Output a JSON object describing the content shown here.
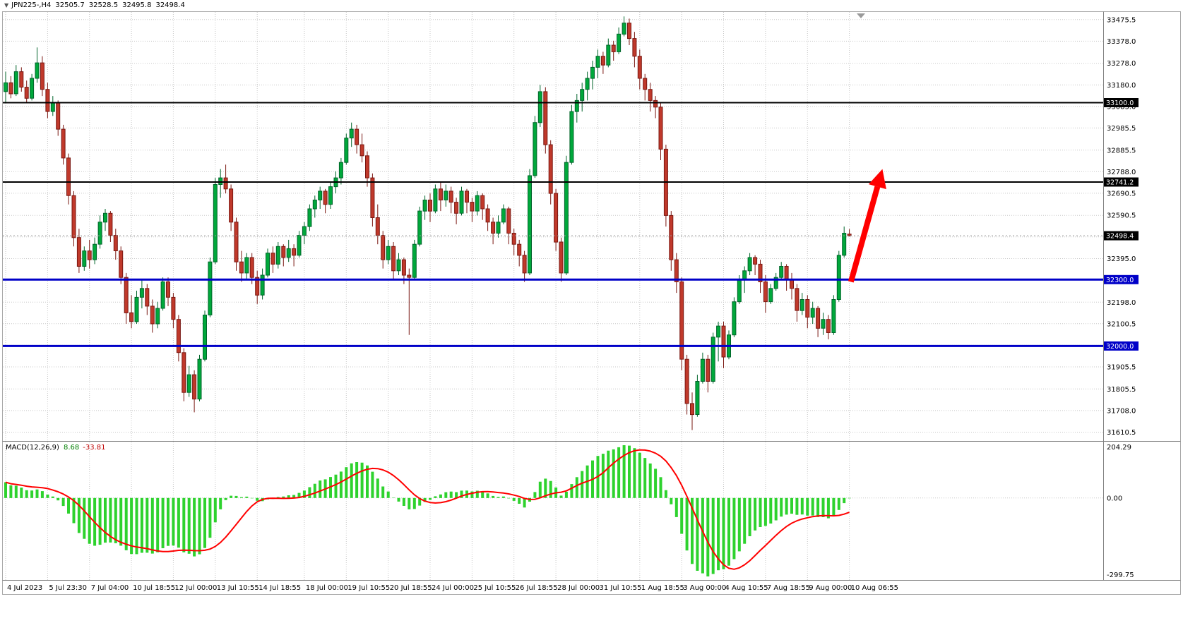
{
  "header": {
    "dropdown_icon": "▼",
    "symbol_period": "JPN225-,H4",
    "open": "32505.7",
    "high": "32528.5",
    "low": "32495.8",
    "close": "32498.4"
  },
  "colors": {
    "background": "#FFFFFF",
    "grid": "#C8C8C8",
    "bull_body": "#00A83B",
    "bull_border": "#00642A",
    "bear_body": "#C0392B",
    "bear_border": "#7A1812",
    "black_line": "#000000",
    "blue_line": "#0000C8",
    "bid_label_bg": "#000000",
    "macd_histogram": "#2ED22E",
    "macd_signal": "#FF0000",
    "arrow": "#FF0000",
    "scale_text": "#000000",
    "separator": "#808080"
  },
  "chart_data": {
    "type": "candlestick",
    "symbol": "JPN225-",
    "timeframe": "H4",
    "title": "JPN225-,H4",
    "price_axis": {
      "ticks": [
        33475.5,
        33378.0,
        33278.0,
        33180.0,
        33083.0,
        32985.5,
        32885.5,
        32788.0,
        32690.5,
        32590.5,
        32493.0,
        32395.0,
        32298.0,
        32198.0,
        32100.5,
        32003.0,
        31905.5,
        31805.5,
        31708.0,
        31610.5
      ]
    },
    "x_axis": {
      "labels": [
        "4 Jul 2023",
        "5 Jul 23:30",
        "7 Jul 04:00",
        "10 Jul 18:55",
        "12 Jul 00:00",
        "13 Jul 10:55",
        "14 Jul 18:55",
        "18 Jul 00:00",
        "19 Jul 10:55",
        "20 Jul 18:55",
        "24 Jul 00:00",
        "25 Jul 10:55",
        "26 Jul 18:55",
        "28 Jul 00:00",
        "31 Jul 10:55",
        "1 Aug 18:55",
        "3 Aug 00:00",
        "4 Aug 10:55",
        "7 Aug 18:55",
        "9 Aug 00:00",
        "10 Aug 06:55"
      ],
      "candle_indices": [
        0,
        8,
        16,
        24,
        32,
        40,
        48,
        57,
        65,
        73,
        81,
        89,
        97,
        105,
        113,
        121,
        129,
        137,
        145,
        153,
        161
      ]
    },
    "candles": [
      [
        33150,
        33240,
        33100,
        33190
      ],
      [
        33190,
        33220,
        33120,
        33140
      ],
      [
        33140,
        33270,
        33130,
        33240
      ],
      [
        33240,
        33260,
        33150,
        33170
      ],
      [
        33170,
        33200,
        33100,
        33120
      ],
      [
        33120,
        33230,
        33110,
        33210
      ],
      [
        33210,
        33350,
        33190,
        33280
      ],
      [
        33280,
        33310,
        33130,
        33160
      ],
      [
        33160,
        33190,
        33030,
        33060
      ],
      [
        33060,
        33130,
        33040,
        33100
      ],
      [
        33100,
        33110,
        32950,
        32980
      ],
      [
        32980,
        33000,
        32820,
        32850
      ],
      [
        32850,
        32870,
        32640,
        32680
      ],
      [
        32680,
        32700,
        32450,
        32490
      ],
      [
        32490,
        32530,
        32330,
        32360
      ],
      [
        32360,
        32450,
        32340,
        32430
      ],
      [
        32430,
        32480,
        32350,
        32390
      ],
      [
        32390,
        32490,
        32370,
        32460
      ],
      [
        32460,
        32590,
        32440,
        32560
      ],
      [
        32560,
        32620,
        32520,
        32600
      ],
      [
        32600,
        32610,
        32470,
        32500
      ],
      [
        32500,
        32530,
        32390,
        32430
      ],
      [
        32430,
        32450,
        32280,
        32310
      ],
      [
        32310,
        32330,
        32100,
        32150
      ],
      [
        32150,
        32230,
        32080,
        32110
      ],
      [
        32110,
        32250,
        32100,
        32220
      ],
      [
        32220,
        32300,
        32170,
        32260
      ],
      [
        32260,
        32280,
        32140,
        32180
      ],
      [
        32180,
        32210,
        32060,
        32100
      ],
      [
        32100,
        32200,
        32080,
        32170
      ],
      [
        32170,
        32310,
        32160,
        32290
      ],
      [
        32290,
        32310,
        32180,
        32220
      ],
      [
        32220,
        32240,
        32080,
        32120
      ],
      [
        32120,
        32140,
        31930,
        31970
      ],
      [
        31970,
        31990,
        31750,
        31790
      ],
      [
        31790,
        31910,
        31770,
        31870
      ],
      [
        31870,
        31890,
        31700,
        31760
      ],
      [
        31760,
        31960,
        31750,
        31940
      ],
      [
        31940,
        32160,
        31930,
        32140
      ],
      [
        32140,
        32400,
        32130,
        32380
      ],
      [
        32380,
        32760,
        32370,
        32730
      ],
      [
        32730,
        32800,
        32670,
        32760
      ],
      [
        32760,
        32820,
        32690,
        32710
      ],
      [
        32710,
        32730,
        32520,
        32560
      ],
      [
        32560,
        32580,
        32340,
        32380
      ],
      [
        32380,
        32430,
        32290,
        32330
      ],
      [
        32330,
        32420,
        32300,
        32400
      ],
      [
        32400,
        32420,
        32280,
        32310
      ],
      [
        32310,
        32340,
        32190,
        32230
      ],
      [
        32230,
        32350,
        32210,
        32320
      ],
      [
        32320,
        32440,
        32310,
        32420
      ],
      [
        32420,
        32450,
        32330,
        32370
      ],
      [
        32370,
        32470,
        32350,
        32450
      ],
      [
        32450,
        32460,
        32360,
        32400
      ],
      [
        32400,
        32480,
        32380,
        32440
      ],
      [
        32440,
        32460,
        32360,
        32410
      ],
      [
        32410,
        32520,
        32400,
        32500
      ],
      [
        32500,
        32560,
        32460,
        32540
      ],
      [
        32540,
        32640,
        32520,
        32620
      ],
      [
        32620,
        32680,
        32580,
        32660
      ],
      [
        32660,
        32720,
        32620,
        32700
      ],
      [
        32700,
        32710,
        32600,
        32640
      ],
      [
        32640,
        32740,
        32620,
        32720
      ],
      [
        32720,
        32790,
        32690,
        32760
      ],
      [
        32760,
        32850,
        32730,
        32830
      ],
      [
        32830,
        32960,
        32820,
        32940
      ],
      [
        32940,
        33010,
        32900,
        32980
      ],
      [
        32980,
        33000,
        32870,
        32910
      ],
      [
        32910,
        32960,
        32830,
        32860
      ],
      [
        32860,
        32880,
        32720,
        32760
      ],
      [
        32760,
        32780,
        32540,
        32580
      ],
      [
        32580,
        32640,
        32460,
        32500
      ],
      [
        32500,
        32520,
        32350,
        32390
      ],
      [
        32390,
        32480,
        32370,
        32450
      ],
      [
        32450,
        32470,
        32300,
        32340
      ],
      [
        32340,
        32420,
        32320,
        32390
      ],
      [
        32390,
        32400,
        32280,
        32320
      ],
      [
        32320,
        32350,
        32050,
        32310
      ],
      [
        32310,
        32480,
        32300,
        32460
      ],
      [
        32460,
        32630,
        32450,
        32610
      ],
      [
        32610,
        32680,
        32570,
        32660
      ],
      [
        32660,
        32690,
        32560,
        32610
      ],
      [
        32610,
        32730,
        32600,
        32710
      ],
      [
        32710,
        32740,
        32610,
        32660
      ],
      [
        32660,
        32730,
        32630,
        32700
      ],
      [
        32700,
        32720,
        32600,
        32650
      ],
      [
        32650,
        32670,
        32550,
        32600
      ],
      [
        32600,
        32720,
        32590,
        32700
      ],
      [
        32700,
        32710,
        32600,
        32650
      ],
      [
        32650,
        32670,
        32560,
        32610
      ],
      [
        32610,
        32700,
        32590,
        32680
      ],
      [
        32680,
        32690,
        32570,
        32620
      ],
      [
        32620,
        32640,
        32520,
        32560
      ],
      [
        32560,
        32580,
        32460,
        32510
      ],
      [
        32510,
        32590,
        32490,
        32560
      ],
      [
        32560,
        32640,
        32550,
        32620
      ],
      [
        32620,
        32630,
        32460,
        32510
      ],
      [
        32510,
        32530,
        32410,
        32460
      ],
      [
        32460,
        32480,
        32360,
        32410
      ],
      [
        32410,
        32430,
        32290,
        32330
      ],
      [
        32330,
        32800,
        32320,
        32770
      ],
      [
        32770,
        33040,
        32760,
        33010
      ],
      [
        33010,
        33180,
        32990,
        33150
      ],
      [
        33150,
        33170,
        32870,
        32910
      ],
      [
        32910,
        32930,
        32640,
        32690
      ],
      [
        32690,
        32710,
        32430,
        32470
      ],
      [
        32470,
        32490,
        32290,
        32330
      ],
      [
        32330,
        32860,
        32320,
        32830
      ],
      [
        32830,
        33090,
        32820,
        33060
      ],
      [
        33060,
        33140,
        33010,
        33110
      ],
      [
        33110,
        33190,
        33060,
        33160
      ],
      [
        33160,
        33240,
        33110,
        33210
      ],
      [
        33210,
        33290,
        33160,
        33260
      ],
      [
        33260,
        33340,
        33210,
        33310
      ],
      [
        33310,
        33330,
        33230,
        33270
      ],
      [
        33270,
        33390,
        33260,
        33360
      ],
      [
        33360,
        33380,
        33290,
        33330
      ],
      [
        33330,
        33440,
        33320,
        33410
      ],
      [
        33410,
        33490,
        33400,
        33460
      ],
      [
        33460,
        33480,
        33360,
        33390
      ],
      [
        33390,
        33420,
        33260,
        33310
      ],
      [
        33310,
        33340,
        33160,
        33210
      ],
      [
        33210,
        33230,
        33110,
        33160
      ],
      [
        33160,
        33190,
        33060,
        33110
      ],
      [
        33110,
        33130,
        33030,
        33080
      ],
      [
        33080,
        33100,
        32840,
        32890
      ],
      [
        32890,
        32910,
        32540,
        32590
      ],
      [
        32590,
        32610,
        32340,
        32390
      ],
      [
        32390,
        32420,
        32240,
        32290
      ],
      [
        32290,
        32310,
        31890,
        31940
      ],
      [
        31940,
        31960,
        31690,
        31740
      ],
      [
        31740,
        31790,
        31620,
        31690
      ],
      [
        31690,
        31870,
        31680,
        31840
      ],
      [
        31840,
        31970,
        31830,
        31940
      ],
      [
        31940,
        31960,
        31790,
        31840
      ],
      [
        31840,
        32060,
        31830,
        32040
      ],
      [
        32040,
        32110,
        31930,
        32090
      ],
      [
        32090,
        32110,
        31900,
        31950
      ],
      [
        31950,
        32070,
        31940,
        32050
      ],
      [
        32050,
        32220,
        32040,
        32200
      ],
      [
        32200,
        32320,
        32190,
        32300
      ],
      [
        32300,
        32360,
        32240,
        32340
      ],
      [
        32340,
        32420,
        32320,
        32400
      ],
      [
        32400,
        32410,
        32320,
        32370
      ],
      [
        32370,
        32390,
        32240,
        32290
      ],
      [
        32290,
        32320,
        32150,
        32200
      ],
      [
        32200,
        32280,
        32190,
        32260
      ],
      [
        32260,
        32330,
        32250,
        32310
      ],
      [
        32310,
        32380,
        32300,
        32360
      ],
      [
        32360,
        32370,
        32250,
        32300
      ],
      [
        32300,
        32330,
        32210,
        32260
      ],
      [
        32260,
        32280,
        32110,
        32160
      ],
      [
        32160,
        32240,
        32140,
        32210
      ],
      [
        32210,
        32230,
        32080,
        32130
      ],
      [
        32130,
        32200,
        32100,
        32170
      ],
      [
        32170,
        32180,
        32040,
        32080
      ],
      [
        32080,
        32150,
        32050,
        32120
      ],
      [
        32120,
        32140,
        32030,
        32060
      ],
      [
        32060,
        32230,
        32050,
        32210
      ],
      [
        32210,
        32430,
        32200,
        32410
      ],
      [
        32410,
        32540,
        32400,
        32510
      ],
      [
        32505.7,
        32528.5,
        32495.8,
        32498.4
      ]
    ],
    "levels": [
      {
        "price": 33100.0,
        "label": "33100.0",
        "color": "#000000",
        "width": 2
      },
      {
        "price": 32741.2,
        "label": "32741.2",
        "color": "#000000",
        "width": 2
      },
      {
        "price": 32300.0,
        "label": "32300.0",
        "color": "#0000C8",
        "width": 3
      },
      {
        "price": 32000.0,
        "label": "32000.0",
        "color": "#0000C8",
        "width": 3
      }
    ],
    "bid": {
      "price": 32498.4,
      "label": "32498.4"
    },
    "arrow": {
      "from_index": 161.3,
      "from_price": 32290,
      "to_index": 167.3,
      "to_price": 32800
    },
    "macd": {
      "label": "MACD(12,26,9)",
      "value": "8.68",
      "signal_value": "-33.81",
      "fast": 12,
      "slow": 26,
      "signal": 9,
      "axis_labels": [
        {
          "v": 204.29,
          "label": "204.29"
        },
        {
          "v": 0,
          "label": "0.00"
        },
        {
          "v": -299.75,
          "label": "-299.75"
        }
      ]
    }
  }
}
